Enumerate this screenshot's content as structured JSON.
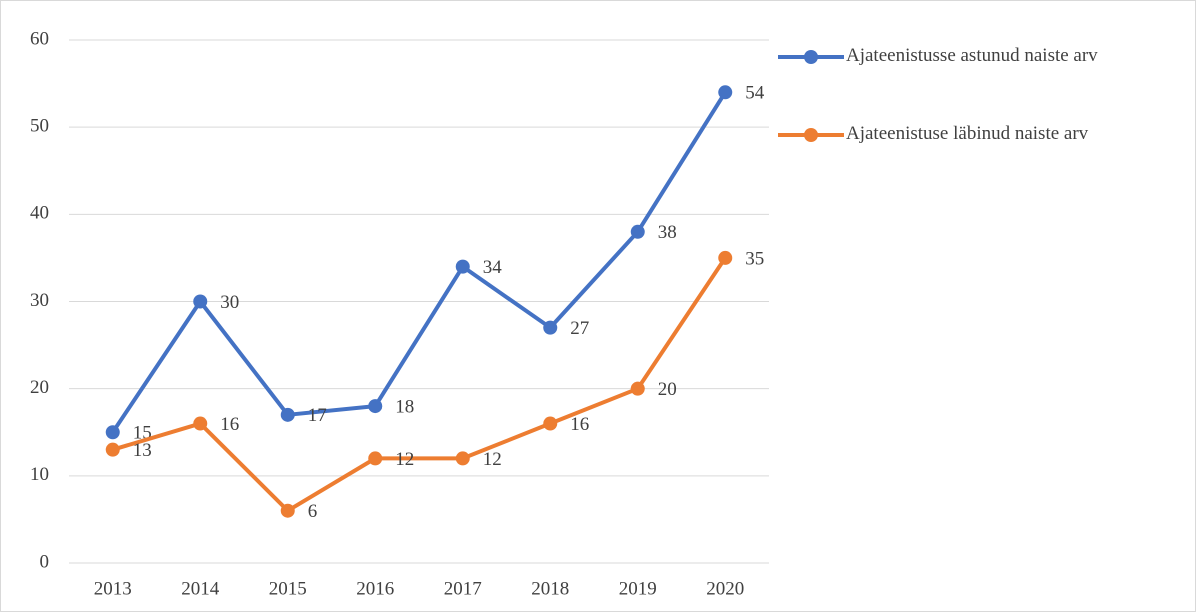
{
  "chart_data": {
    "type": "line",
    "categories": [
      "2013",
      "2014",
      "2015",
      "2016",
      "2017",
      "2018",
      "2019",
      "2020"
    ],
    "series": [
      {
        "name": "Ajateenistusse astunud naiste arv",
        "color": "#4472c4",
        "values": [
          15,
          30,
          17,
          18,
          34,
          27,
          38,
          54
        ]
      },
      {
        "name": "Ajateenistuse läbinud naiste arv",
        "color": "#ed7d31",
        "values": [
          13,
          16,
          6,
          12,
          12,
          16,
          20,
          35
        ]
      }
    ],
    "ylim": [
      0,
      60
    ],
    "yticks": [
      0,
      10,
      20,
      30,
      40,
      50,
      60
    ],
    "grid": true,
    "legend": "right"
  }
}
